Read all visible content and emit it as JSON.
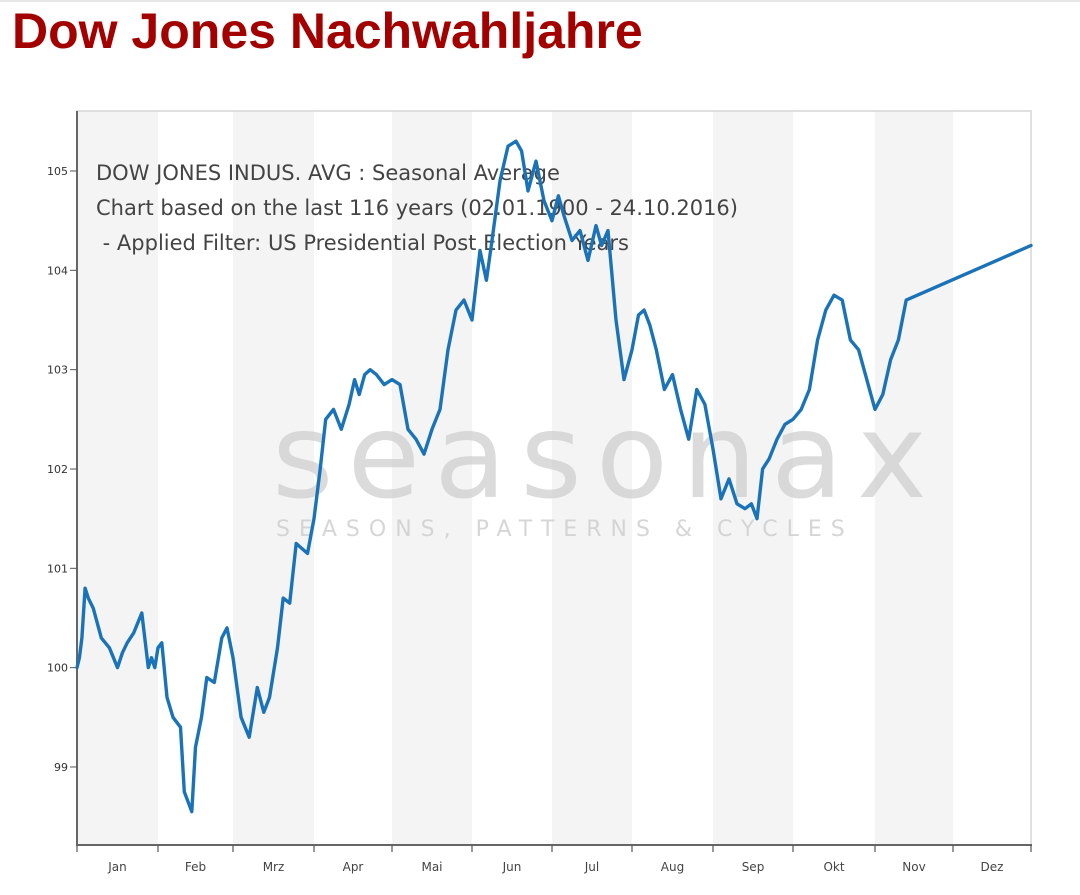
{
  "page": {
    "title": "Dow Jones Nachwahljahre",
    "title_color": "#a30000"
  },
  "chart_info": {
    "line1": "DOW JONES INDUS. AVG : Seasonal Average",
    "line2": "Chart based on the last 116 years (02.01.1900 - 24.10.2016)",
    "line3": " - Applied Filter: US Presidential Post Election Years"
  },
  "watermark": {
    "brand": "seasonax",
    "tagline": "SEASONS, PATTERNS & CYCLES"
  },
  "colors": {
    "line": "#1a73b8",
    "band": "#f4f4f4",
    "axis": "#555555"
  },
  "chart_data": {
    "type": "line",
    "title": "DOW JONES INDUS. AVG : Seasonal Average",
    "subtitle": "Chart based on the last 116 years (02.01.1900 - 24.10.2016) - Applied Filter: US Presidential Post Election Years",
    "xlabel": "",
    "ylabel": "",
    "ylim": [
      98.4,
      105.6
    ],
    "yticks": [
      99,
      100,
      101,
      102,
      103,
      104,
      105
    ],
    "categories": [
      "Jan",
      "Feb",
      "Mrz",
      "Apr",
      "Mai",
      "Jun",
      "Jul",
      "Aug",
      "Sep",
      "Okt",
      "Nov",
      "Dez"
    ],
    "grid": "alternating month bands",
    "legend": "none",
    "series": [
      {
        "name": "Seasonal Average (Post Election Years)",
        "x_month_fraction": [
          0.0,
          0.03,
          0.06,
          0.1,
          0.14,
          0.2,
          0.3,
          0.4,
          0.5,
          0.56,
          0.62,
          0.7,
          0.8,
          0.88,
          0.92,
          0.96,
          1.0,
          1.05,
          1.12,
          1.2,
          1.3,
          1.35,
          1.45,
          1.5,
          1.58,
          1.65,
          1.75,
          1.85,
          1.92,
          2.0,
          2.1,
          2.2,
          2.3,
          2.38,
          2.45,
          2.55,
          2.62,
          2.7,
          2.78,
          2.85,
          2.92,
          3.0,
          3.08,
          3.15,
          3.25,
          3.35,
          3.45,
          3.52,
          3.58,
          3.65,
          3.72,
          3.8,
          3.9,
          4.0,
          4.1,
          4.2,
          4.3,
          4.4,
          4.5,
          4.6,
          4.7,
          4.8,
          4.9,
          5.0,
          5.1,
          5.18,
          5.25,
          5.35,
          5.45,
          5.55,
          5.62,
          5.7,
          5.8,
          5.9,
          6.0,
          6.08,
          6.15,
          6.25,
          6.35,
          6.45,
          6.55,
          6.62,
          6.7,
          6.8,
          6.9,
          7.0,
          7.08,
          7.15,
          7.22,
          7.3,
          7.4,
          7.5,
          7.6,
          7.7,
          7.8,
          7.9,
          8.0,
          8.1,
          8.2,
          8.3,
          8.4,
          8.48,
          8.55,
          8.62,
          8.7,
          8.8,
          8.9,
          9.0,
          9.1,
          9.2,
          9.3,
          9.4,
          9.5,
          9.6,
          9.7,
          9.8,
          9.9,
          10.0,
          10.1,
          10.2,
          10.3,
          10.4,
          10.5,
          10.6,
          10.7,
          10.8,
          10.9,
          11.0,
          11.1,
          11.2,
          11.3,
          11.4,
          11.5,
          11.6,
          11.7,
          11.8,
          11.9,
          12.0
        ],
        "values": [
          100.0,
          100.1,
          100.3,
          100.8,
          100.7,
          100.6,
          100.3,
          100.2,
          100.0,
          100.15,
          100.25,
          100.35,
          100.55,
          100.0,
          100.1,
          100.0,
          100.2,
          100.25,
          99.7,
          99.5,
          99.4,
          98.75,
          98.55,
          99.2,
          99.5,
          99.9,
          99.85,
          100.3,
          100.4,
          100.1,
          99.5,
          99.3,
          99.8,
          99.55,
          99.7,
          100.2,
          100.7,
          100.65,
          101.25,
          101.2,
          101.15,
          101.5,
          102.0,
          102.5,
          102.6,
          102.4,
          102.65,
          102.9,
          102.75,
          102.95,
          103.0,
          102.95,
          102.85,
          102.9,
          102.85,
          102.4,
          102.3,
          102.15,
          102.4,
          102.6,
          103.2,
          103.6,
          103.7,
          103.5,
          104.2,
          103.9,
          104.3,
          104.9,
          105.25,
          105.3,
          105.2,
          104.8,
          105.1,
          104.7,
          104.5,
          104.75,
          104.55,
          104.3,
          104.4,
          104.1,
          104.45,
          104.25,
          104.4,
          103.5,
          102.9,
          103.2,
          103.55,
          103.6,
          103.45,
          103.2,
          102.8,
          102.95,
          102.6,
          102.3,
          102.8,
          102.65,
          102.2,
          101.7,
          101.9,
          101.65,
          101.6,
          101.65,
          101.5,
          102.0,
          102.1,
          102.3,
          102.45,
          102.5,
          102.6,
          102.8,
          103.3,
          103.6,
          103.75,
          103.7,
          103.3,
          103.2,
          102.9,
          102.6,
          102.75,
          103.1,
          103.3,
          103.7,
          104.25,
          104.25,
          104.25,
          104.25,
          104.25,
          104.25,
          104.25,
          104.25,
          104.25,
          104.25,
          104.25,
          104.25,
          104.25,
          104.25,
          104.25
        ],
        "color": "#1a73b8"
      }
    ]
  }
}
